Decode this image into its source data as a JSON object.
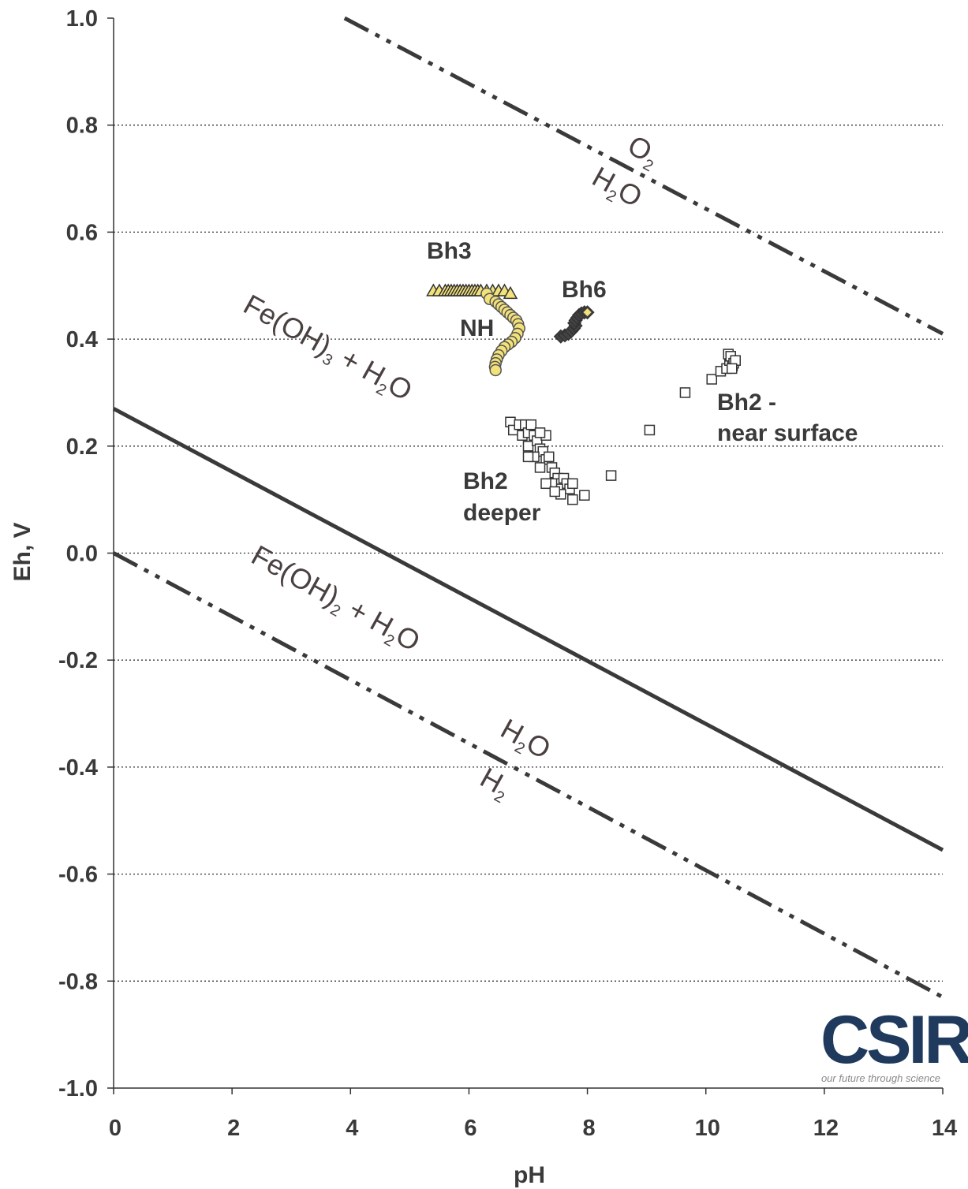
{
  "chart_data": {
    "type": "scatter",
    "xlabel": "pH",
    "ylabel": "Eh, V",
    "xlim": [
      0,
      14
    ],
    "ylim": [
      -1.0,
      1.0
    ],
    "x_ticks": [
      "0",
      "2",
      "4",
      "6",
      "8",
      "10",
      "12",
      "14"
    ],
    "y_ticks": [
      "1.0",
      "0.8",
      "0.6",
      "0.4",
      "0.2",
      "0.0",
      "-0.2",
      "-0.4",
      "-0.6",
      "-0.8",
      "-1.0"
    ],
    "grid": "horizontal dotted",
    "lines": [
      {
        "style": "dash-dot-dot",
        "points": [
          [
            3.9,
            1.0
          ],
          [
            14,
            0.41
          ]
        ]
      },
      {
        "style": "solid",
        "points": [
          [
            0,
            0.27
          ],
          [
            14,
            -0.555
          ]
        ]
      },
      {
        "style": "dash-dot-dot",
        "points": [
          [
            0,
            0.0
          ],
          [
            14,
            -0.83
          ]
        ]
      }
    ],
    "series": [
      {
        "name": "Bh3",
        "marker": "triangle",
        "fill": "#f3e27a",
        "stroke": "#333333",
        "points": [
          [
            5.4,
            0.49
          ],
          [
            5.5,
            0.49
          ],
          [
            5.6,
            0.49
          ],
          [
            5.65,
            0.49
          ],
          [
            5.7,
            0.49
          ],
          [
            5.75,
            0.49
          ],
          [
            5.8,
            0.49
          ],
          [
            5.85,
            0.49
          ],
          [
            5.9,
            0.49
          ],
          [
            5.95,
            0.49
          ],
          [
            6.0,
            0.49
          ],
          [
            6.05,
            0.49
          ],
          [
            6.1,
            0.49
          ],
          [
            6.15,
            0.49
          ],
          [
            6.2,
            0.49
          ],
          [
            6.3,
            0.49
          ],
          [
            6.4,
            0.49
          ],
          [
            6.5,
            0.49
          ],
          [
            6.6,
            0.49
          ],
          [
            6.7,
            0.485
          ]
        ]
      },
      {
        "name": "NH",
        "marker": "circle",
        "fill": "#f3e27a",
        "stroke": "#555555",
        "points": [
          [
            6.3,
            0.485
          ],
          [
            6.35,
            0.475
          ],
          [
            6.45,
            0.47
          ],
          [
            6.5,
            0.465
          ],
          [
            6.55,
            0.46
          ],
          [
            6.6,
            0.455
          ],
          [
            6.65,
            0.45
          ],
          [
            6.7,
            0.445
          ],
          [
            6.75,
            0.44
          ],
          [
            6.8,
            0.435
          ],
          [
            6.83,
            0.428
          ],
          [
            6.85,
            0.42
          ],
          [
            6.82,
            0.41
          ],
          [
            6.78,
            0.402
          ],
          [
            6.72,
            0.395
          ],
          [
            6.66,
            0.39
          ],
          [
            6.6,
            0.385
          ],
          [
            6.55,
            0.378
          ],
          [
            6.5,
            0.37
          ],
          [
            6.47,
            0.362
          ],
          [
            6.45,
            0.355
          ],
          [
            6.44,
            0.348
          ],
          [
            6.45,
            0.342
          ]
        ]
      },
      {
        "name": "Bh6",
        "marker": "diamond",
        "fill": "#444444",
        "stroke": "#333333",
        "points": [
          [
            7.55,
            0.405
          ],
          [
            7.62,
            0.407
          ],
          [
            7.68,
            0.41
          ],
          [
            7.73,
            0.415
          ],
          [
            7.77,
            0.42
          ],
          [
            7.8,
            0.425
          ],
          [
            7.78,
            0.43
          ],
          [
            7.8,
            0.435
          ],
          [
            7.83,
            0.44
          ],
          [
            7.86,
            0.445
          ],
          [
            7.9,
            0.448
          ],
          [
            7.95,
            0.45
          ],
          [
            8.0,
            0.45
          ]
        ]
      },
      {
        "name": "Bh2 - near surface",
        "marker": "square",
        "fill": "#ffffff",
        "stroke": "#333333",
        "points": [
          [
            8.4,
            0.145
          ],
          [
            9.05,
            0.23
          ],
          [
            9.65,
            0.3
          ],
          [
            10.1,
            0.325
          ],
          [
            10.25,
            0.34
          ],
          [
            10.35,
            0.345
          ],
          [
            10.4,
            0.36
          ],
          [
            10.45,
            0.35
          ],
          [
            10.38,
            0.372
          ],
          [
            10.42,
            0.368
          ],
          [
            10.47,
            0.355
          ],
          [
            10.5,
            0.36
          ],
          [
            10.44,
            0.345
          ]
        ]
      },
      {
        "name": "Bh2 deeper",
        "marker": "square",
        "fill": "#ffffff",
        "stroke": "#333333",
        "points": [
          [
            6.7,
            0.245
          ],
          [
            6.75,
            0.23
          ],
          [
            6.85,
            0.24
          ],
          [
            6.9,
            0.22
          ],
          [
            6.95,
            0.24
          ],
          [
            7.0,
            0.225
          ],
          [
            7.05,
            0.24
          ],
          [
            7.1,
            0.22
          ],
          [
            7.0,
            0.2
          ],
          [
            7.15,
            0.21
          ],
          [
            7.2,
            0.195
          ],
          [
            7.25,
            0.19
          ],
          [
            7.1,
            0.18
          ],
          [
            7.3,
            0.175
          ],
          [
            7.35,
            0.18
          ],
          [
            7.0,
            0.18
          ],
          [
            7.2,
            0.16
          ],
          [
            7.4,
            0.16
          ],
          [
            7.45,
            0.15
          ],
          [
            7.5,
            0.14
          ],
          [
            7.55,
            0.13
          ],
          [
            7.6,
            0.14
          ],
          [
            7.65,
            0.13
          ],
          [
            7.5,
            0.12
          ],
          [
            7.4,
            0.13
          ],
          [
            7.3,
            0.13
          ],
          [
            7.7,
            0.12
          ],
          [
            7.75,
            0.13
          ],
          [
            7.55,
            0.11
          ],
          [
            7.45,
            0.115
          ],
          [
            7.75,
            0.1
          ],
          [
            7.95,
            0.108
          ],
          [
            7.3,
            0.22
          ],
          [
            7.2,
            0.225
          ]
        ]
      }
    ],
    "annotations": {
      "bh3": "Bh3",
      "nh": "NH",
      "bh6": "Bh6",
      "bh2_surface_1": "Bh2 -",
      "bh2_surface_2": "near surface",
      "bh2_deeper_1": "Bh2",
      "bh2_deeper_2": "deeper",
      "o2": "O",
      "o2_sub": "2",
      "h2o_upper": "H",
      "h2o_upper_sub": "2",
      "h2o_upper_o": "O",
      "feoh3_a": "Fe(OH)",
      "feoh3_sub": "3",
      "feoh3_b": " + H",
      "feoh3_sub2": "2",
      "feoh3_c": "O",
      "feoh2_a": "Fe(OH)",
      "feoh2_sub": "2",
      "feoh2_b": " + H",
      "feoh2_sub2": "2",
      "feoh2_c": "O",
      "h2o_lower": "H",
      "h2o_lower_sub": "2",
      "h2o_lower_o": "O",
      "h2_lower": "H",
      "h2_lower_sub": "2"
    }
  },
  "logo": {
    "text": "CSIR",
    "tagline": "our future through science",
    "color": "#1f3a5c"
  }
}
